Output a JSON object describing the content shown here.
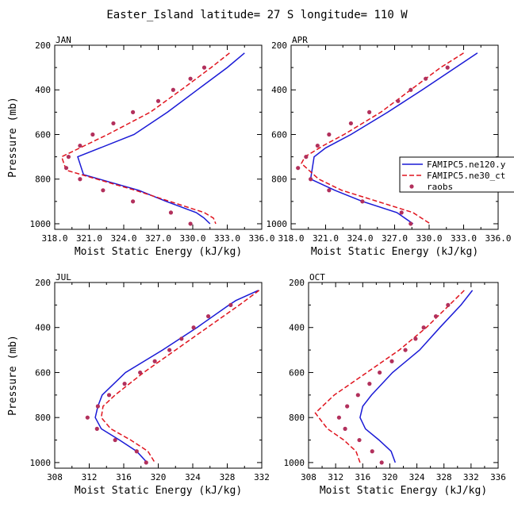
{
  "title": "Easter_Island  latitude= 27 S longitude= 110 W",
  "colors": {
    "model1": "#1a1ad6",
    "model2": "#e0141e",
    "obs": "#b2305c"
  },
  "legend": {
    "placement": "right of APR panel",
    "entries": [
      {
        "label": "FAMIPC5.ne120.y",
        "style": "solid-line",
        "color": "#1a1ad6"
      },
      {
        "label": "FAMIPC5.ne30_ct",
        "style": "dashed-line",
        "color": "#e0141e"
      },
      {
        "label": "raobs",
        "style": "dot",
        "color": "#b2305c"
      }
    ]
  },
  "chart_data": [
    {
      "type": "line",
      "panel_label": "JAN",
      "xlabel": "Moist Static Energy (kJ/kg)",
      "ylabel": "Pressure (mb)",
      "xlim": [
        318,
        336
      ],
      "ylim": [
        1025,
        200
      ],
      "xticks": [
        "318.0",
        "321.0",
        "324.0",
        "327.0",
        "330.0",
        "333.0",
        "336.0"
      ],
      "xtick_values": [
        318,
        321,
        324,
        327,
        330,
        333,
        336
      ],
      "yticks": [
        200,
        400,
        600,
        800,
        1000
      ],
      "series": [
        {
          "name": "FAMIPC5.ne120.y",
          "style": "solid",
          "pressure": [
            235,
            300,
            400,
            500,
            600,
            700,
            780,
            850,
            900,
            950,
            975,
            1000
          ],
          "mse": [
            334.5,
            333.0,
            330.4,
            327.8,
            324.9,
            320.0,
            320.5,
            325.3,
            327.7,
            330.3,
            331.0,
            331.5
          ]
        },
        {
          "name": "FAMIPC5.ne30_ct",
          "style": "dashed",
          "pressure": [
            235,
            300,
            400,
            500,
            600,
            650,
            700,
            760,
            850,
            900,
            950,
            975,
            1000
          ],
          "mse": [
            333.2,
            331.6,
            329.0,
            326.3,
            322.6,
            320.6,
            318.6,
            319.0,
            325.0,
            328.0,
            331.0,
            331.8,
            332.0
          ]
        },
        {
          "name": "raobs",
          "style": "dots",
          "pressure": [
            300,
            350,
            400,
            450,
            500,
            550,
            600,
            650,
            700,
            750,
            800,
            850,
            900,
            950,
            1000
          ],
          "mse": [
            331.0,
            329.8,
            328.3,
            327.0,
            324.8,
            323.1,
            321.3,
            320.2,
            319.2,
            319.0,
            320.2,
            322.2,
            324.8,
            328.1,
            329.8
          ]
        }
      ]
    },
    {
      "type": "line",
      "panel_label": "APR",
      "xlabel": "Moist Static Energy (kJ/kg)",
      "ylabel": "",
      "xlim": [
        318,
        336
      ],
      "ylim": [
        1025,
        200
      ],
      "xticks": [
        "318.0",
        "321.0",
        "324.0",
        "327.0",
        "330.0",
        "333.0",
        "336.0"
      ],
      "xtick_values": [
        318,
        321,
        324,
        327,
        330,
        333,
        336
      ],
      "yticks": [
        200,
        400,
        600,
        800,
        1000
      ],
      "series": [
        {
          "name": "FAMIPC5.ne120.y",
          "style": "solid",
          "pressure": [
            235,
            300,
            400,
            500,
            600,
            660,
            700,
            800,
            850,
            900,
            950,
            1000
          ],
          "mse": [
            334.2,
            332.3,
            329.4,
            326.4,
            323.2,
            321.0,
            320.0,
            319.7,
            321.8,
            324.2,
            327.2,
            328.6
          ]
        },
        {
          "name": "FAMIPC5.ne30_ct",
          "style": "dashed",
          "pressure": [
            235,
            300,
            400,
            500,
            600,
            650,
            700,
            730,
            800,
            850,
            900,
            950,
            1000
          ],
          "mse": [
            333.0,
            331.0,
            328.4,
            325.8,
            322.6,
            320.8,
            319.2,
            318.9,
            320.4,
            322.4,
            325.5,
            328.6,
            330.1
          ]
        },
        {
          "name": "raobs",
          "style": "dots",
          "pressure": [
            300,
            350,
            400,
            450,
            500,
            550,
            600,
            650,
            700,
            750,
            800,
            850,
            900,
            950,
            1000
          ],
          "mse": [
            331.6,
            329.7,
            328.4,
            327.3,
            324.8,
            323.2,
            321.3,
            320.3,
            319.3,
            318.6,
            319.7,
            321.3,
            324.2,
            327.6,
            328.4
          ]
        }
      ]
    },
    {
      "type": "line",
      "panel_label": "JUL",
      "xlabel": "Moist Static Energy (kJ/kg)",
      "ylabel": "Pressure (mb)",
      "xlim": [
        308,
        332
      ],
      "ylim": [
        1025,
        200
      ],
      "xticks": [
        "308",
        "312",
        "316",
        "320",
        "324",
        "328",
        "332"
      ],
      "xtick_values": [
        308,
        312,
        316,
        320,
        324,
        328,
        332
      ],
      "yticks": [
        200,
        400,
        600,
        800,
        1000
      ],
      "series": [
        {
          "name": "FAMIPC5.ne120.y",
          "style": "solid",
          "pressure": [
            235,
            280,
            300,
            400,
            500,
            600,
            700,
            750,
            800,
            850,
            900,
            950,
            1000
          ],
          "mse": [
            331.6,
            329.0,
            328.2,
            324.5,
            320.5,
            316.2,
            313.5,
            313.0,
            312.7,
            313.4,
            315.5,
            317.5,
            318.7
          ]
        },
        {
          "name": "FAMIPC5.ne30_ct",
          "style": "dashed",
          "pressure": [
            235,
            300,
            400,
            500,
            600,
            700,
            750,
            800,
            850,
            900,
            950,
            1000
          ],
          "mse": [
            331.7,
            329.4,
            325.7,
            322.0,
            318.3,
            315.0,
            313.6,
            313.4,
            314.5,
            316.8,
            318.8,
            319.6
          ]
        },
        {
          "name": "raobs",
          "style": "dots",
          "pressure": [
            300,
            350,
            400,
            450,
            500,
            550,
            600,
            650,
            700,
            750,
            800,
            850,
            900,
            950,
            1000
          ],
          "mse": [
            328.4,
            325.8,
            324.1,
            322.7,
            321.3,
            319.6,
            317.9,
            316.1,
            314.3,
            313.0,
            311.8,
            312.9,
            315.0,
            317.5,
            318.6
          ]
        }
      ]
    },
    {
      "type": "line",
      "panel_label": "OCT",
      "xlabel": "Moist Static Energy (kJ/kg)",
      "ylabel": "",
      "xlim": [
        308,
        336
      ],
      "ylim": [
        1025,
        200
      ],
      "xticks": [
        "308",
        "312",
        "316",
        "320",
        "324",
        "328",
        "332",
        "336"
      ],
      "xtick_values": [
        308,
        312,
        316,
        320,
        324,
        328,
        332,
        336
      ],
      "yticks": [
        200,
        400,
        600,
        800,
        1000
      ],
      "series": [
        {
          "name": "FAMIPC5.ne120.y",
          "style": "solid",
          "pressure": [
            235,
            300,
            400,
            500,
            600,
            700,
            750,
            800,
            850,
            900,
            950,
            1000
          ],
          "mse": [
            332.2,
            330.5,
            327.4,
            324.4,
            320.4,
            317.3,
            316.0,
            315.6,
            316.4,
            318.4,
            320.2,
            320.8
          ]
        },
        {
          "name": "FAMIPC5.ne30_ct",
          "style": "dashed",
          "pressure": [
            235,
            300,
            400,
            500,
            600,
            700,
            780,
            850,
            900,
            950,
            1000
          ],
          "mse": [
            331.0,
            328.8,
            325.4,
            321.4,
            316.6,
            311.8,
            309.0,
            310.8,
            313.2,
            315.0,
            315.6
          ]
        },
        {
          "name": "raobs",
          "style": "dots",
          "pressure": [
            300,
            350,
            400,
            450,
            500,
            550,
            600,
            650,
            700,
            750,
            800,
            850,
            900,
            950,
            1000
          ],
          "mse": [
            328.6,
            326.8,
            325.0,
            323.8,
            322.3,
            320.3,
            318.5,
            317.0,
            315.3,
            313.7,
            312.5,
            313.4,
            315.5,
            317.4,
            318.8
          ]
        }
      ]
    }
  ]
}
